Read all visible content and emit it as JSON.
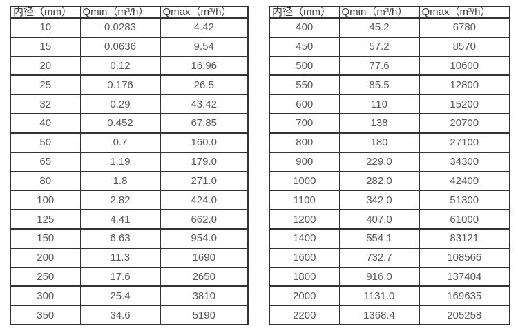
{
  "style": {
    "border_color": "#333333",
    "header_text_color": "#404040",
    "cell_text_color": "#595959",
    "background_color": "#ffffff"
  },
  "tables": [
    {
      "name": "small-diameter-flow-table",
      "headers": [
        "内径（mm）",
        "Qmin（m³/h）",
        "Qmax（m³/h）"
      ],
      "rows": [
        [
          "10",
          "0.0283",
          "4.42"
        ],
        [
          "15",
          "0.0636",
          "9.54"
        ],
        [
          "20",
          "0.12",
          "16.96"
        ],
        [
          "25",
          "0.176",
          "26.5"
        ],
        [
          "32",
          "0.29",
          "43.42"
        ],
        [
          "40",
          "0.452",
          "67.85"
        ],
        [
          "50",
          "0.7",
          "160.0"
        ],
        [
          "65",
          "1.19",
          "179.0"
        ],
        [
          "80",
          "1.8",
          "271.0"
        ],
        [
          "100",
          "2.82",
          "424.0"
        ],
        [
          "125",
          "4.41",
          "662.0"
        ],
        [
          "150",
          "6.63",
          "954.0"
        ],
        [
          "200",
          "11.3",
          "1690"
        ],
        [
          "250",
          "17.6",
          "2650"
        ],
        [
          "300",
          "25.4",
          "3810"
        ],
        [
          "350",
          "34.6",
          "5190"
        ]
      ]
    },
    {
      "name": "large-diameter-flow-table",
      "headers": [
        "内径（mm）",
        "Qmin（m³/h）",
        "Qmax（m³/h）"
      ],
      "rows": [
        [
          "400",
          "45.2",
          "6780"
        ],
        [
          "450",
          "57.2",
          "8570"
        ],
        [
          "500",
          "77.6",
          "10600"
        ],
        [
          "550",
          "85.5",
          "12800"
        ],
        [
          "600",
          "110",
          "15200"
        ],
        [
          "700",
          "138",
          "20700"
        ],
        [
          "800",
          "180",
          "27100"
        ],
        [
          "900",
          "229.0",
          "34300"
        ],
        [
          "1000",
          "282.0",
          "42400"
        ],
        [
          "1100",
          "342.0",
          "51300"
        ],
        [
          "1200",
          "407.0",
          "61000"
        ],
        [
          "1400",
          "554.1",
          "83121"
        ],
        [
          "1600",
          "732.7",
          "108566"
        ],
        [
          "1800",
          "916.0",
          "137404"
        ],
        [
          "2000",
          "1131.0",
          "169635"
        ],
        [
          "2200",
          "1368.4",
          "205258"
        ]
      ]
    }
  ]
}
